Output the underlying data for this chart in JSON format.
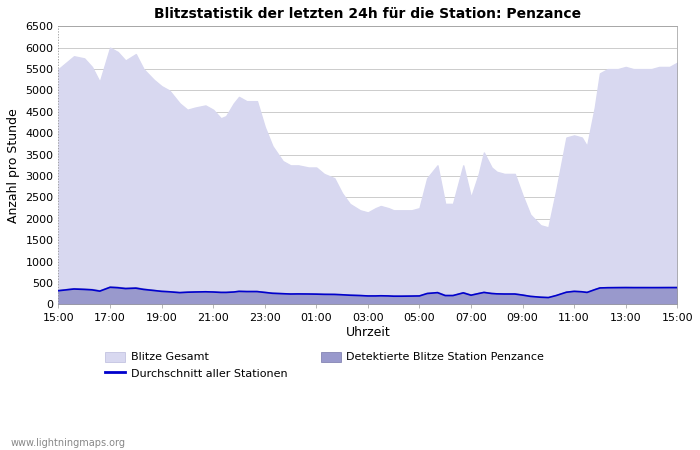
{
  "title": "Blitzstatistik der letzten 24h für die Station: Penzance",
  "xlabel": "Uhrzeit",
  "ylabel": "Anzahl pro Stunde",
  "xlim": [
    0,
    24
  ],
  "ylim": [
    0,
    6500
  ],
  "yticks": [
    0,
    500,
    1000,
    1500,
    2000,
    2500,
    3000,
    3500,
    4000,
    4500,
    5000,
    5500,
    6000,
    6500
  ],
  "xtick_labels": [
    "15:00",
    "17:00",
    "19:00",
    "21:00",
    "23:00",
    "01:00",
    "03:00",
    "05:00",
    "07:00",
    "09:00",
    "11:00",
    "13:00",
    "15:00"
  ],
  "xtick_positions": [
    0,
    2,
    4,
    6,
    8,
    10,
    12,
    14,
    16,
    18,
    20,
    22,
    24
  ],
  "background_color": "#ffffff",
  "plot_bg_color": "#ffffff",
  "grid_color": "#cccccc",
  "fill_gesamt_color": "#d8d8f0",
  "fill_penzance_color": "#9999cc",
  "line_avg_color": "#0000cc",
  "watermark": "www.lightningmaps.org",
  "legend_row1": [
    "Blitze Gesamt",
    "Durchschnitt aller Stationen"
  ],
  "legend_row2": [
    "Detektierte Blitze Station Penzance"
  ],
  "x_gesamt": [
    0,
    0.3,
    0.6,
    1.0,
    1.3,
    1.6,
    2.0,
    2.3,
    2.6,
    3.0,
    3.3,
    3.7,
    4.0,
    4.3,
    4.7,
    5.0,
    5.3,
    5.7,
    6.0,
    6.3,
    6.5,
    6.8,
    7.0,
    7.3,
    7.7,
    8.0,
    8.3,
    8.7,
    9.0,
    9.3,
    9.7,
    10.0,
    10.3,
    10.7,
    11.0,
    11.3,
    11.7,
    12.0,
    12.3,
    12.5,
    12.8,
    13.0,
    13.3,
    13.7,
    14.0,
    14.3,
    14.7,
    15.0,
    15.3,
    15.7,
    16.0,
    16.3,
    16.5,
    16.8,
    17.0,
    17.3,
    17.7,
    18.0,
    18.3,
    18.7,
    19.0,
    19.3,
    19.7,
    20.0,
    20.3,
    20.5,
    20.8,
    21.0,
    21.3,
    21.7,
    22.0,
    22.3,
    22.7,
    23.0,
    23.3,
    23.7,
    24.0
  ],
  "y_gesamt": [
    5500,
    5650,
    5800,
    5750,
    5550,
    5200,
    6000,
    5900,
    5700,
    5850,
    5500,
    5250,
    5100,
    5000,
    4700,
    4550,
    4600,
    4650,
    4550,
    4350,
    4400,
    4700,
    4850,
    4750,
    4750,
    4150,
    3700,
    3350,
    3250,
    3250,
    3200,
    3200,
    3050,
    2950,
    2600,
    2350,
    2200,
    2150,
    2250,
    2300,
    2250,
    2200,
    2200,
    2200,
    2250,
    2950,
    3250,
    2350,
    2350,
    3250,
    2500,
    3050,
    3550,
    3200,
    3100,
    3050,
    3050,
    2550,
    2100,
    1850,
    1800,
    2650,
    3900,
    3950,
    3900,
    3700,
    4600,
    5400,
    5500,
    5500,
    5550,
    5500,
    5500,
    5500,
    5550,
    5550,
    5650
  ],
  "y_penzance": [
    340,
    360,
    380,
    370,
    360,
    330,
    420,
    410,
    390,
    400,
    370,
    340,
    320,
    310,
    290,
    300,
    305,
    310,
    305,
    295,
    295,
    305,
    320,
    315,
    315,
    295,
    275,
    265,
    258,
    260,
    258,
    255,
    250,
    248,
    240,
    228,
    220,
    210,
    210,
    215,
    210,
    205,
    205,
    208,
    212,
    270,
    290,
    220,
    220,
    285,
    230,
    270,
    295,
    268,
    260,
    256,
    256,
    230,
    200,
    180,
    170,
    220,
    300,
    320,
    310,
    295,
    360,
    400,
    405,
    408,
    410,
    408,
    408,
    407,
    408,
    408,
    410
  ],
  "y_avg": [
    320,
    340,
    360,
    350,
    340,
    310,
    400,
    390,
    370,
    380,
    350,
    325,
    305,
    295,
    275,
    285,
    290,
    295,
    290,
    280,
    280,
    290,
    305,
    300,
    300,
    280,
    260,
    250,
    243,
    245,
    243,
    240,
    235,
    233,
    225,
    215,
    207,
    198,
    198,
    202,
    198,
    192,
    192,
    195,
    198,
    255,
    275,
    207,
    207,
    270,
    215,
    255,
    280,
    255,
    247,
    243,
    243,
    218,
    188,
    168,
    160,
    207,
    285,
    305,
    295,
    280,
    345,
    385,
    390,
    392,
    393,
    392,
    392,
    392,
    392,
    393,
    393
  ]
}
